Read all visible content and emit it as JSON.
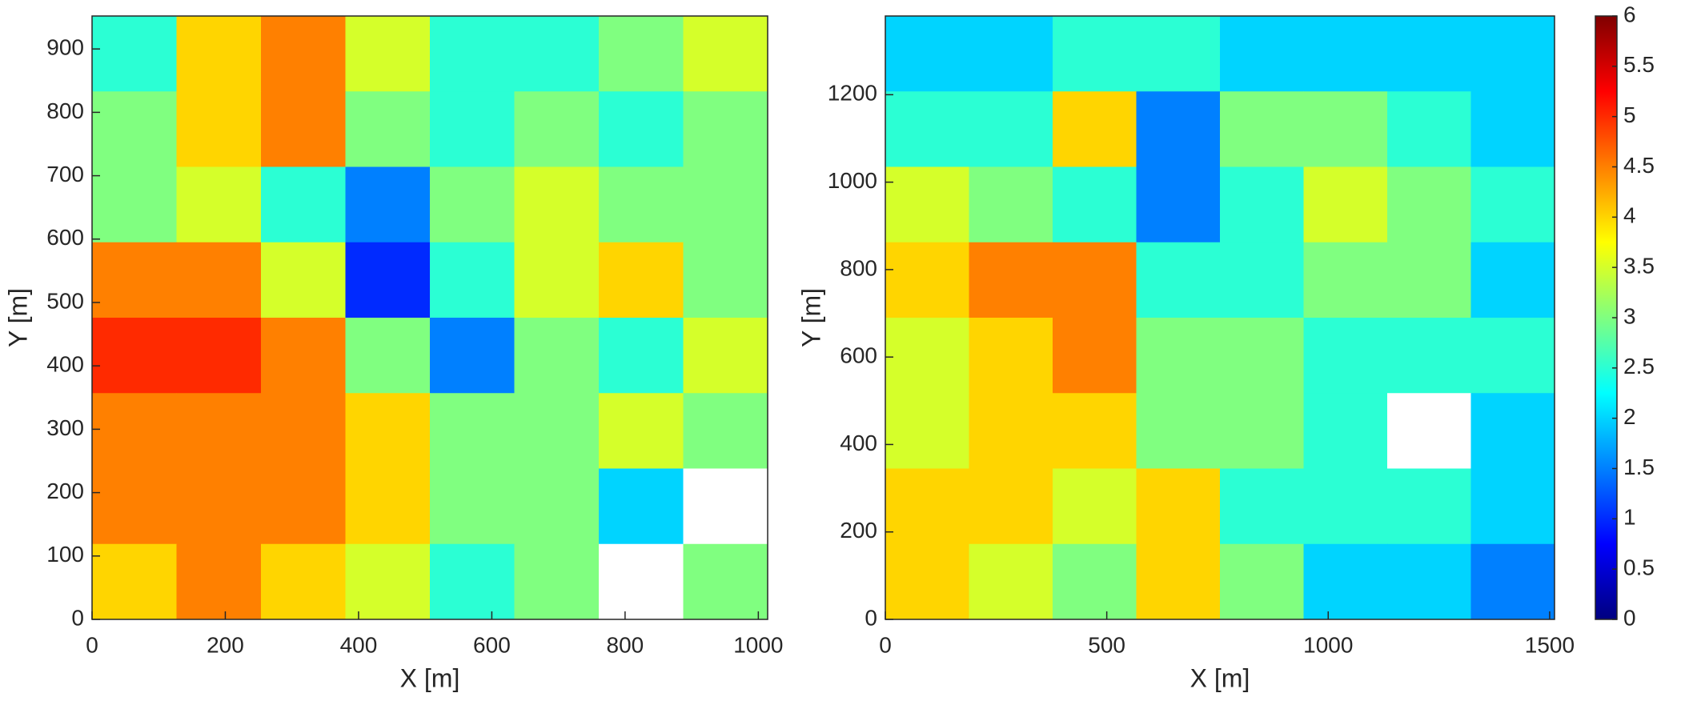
{
  "chart_data": [
    {
      "type": "heatmap",
      "xlabel": "X [m]",
      "ylabel": "Y [m]",
      "xlim": [
        0,
        1014
      ],
      "ylim": [
        0,
        952
      ],
      "xticks": [
        0,
        200,
        400,
        600,
        800,
        1000
      ],
      "yticks": [
        0,
        100,
        200,
        300,
        400,
        500,
        600,
        700,
        800,
        900
      ],
      "colormap": "jet",
      "clim": [
        0,
        6
      ],
      "values": [
        [
          2.5,
          4,
          4.5,
          3.5,
          2.5,
          2.5,
          3,
          3.5
        ],
        [
          3,
          4,
          4.5,
          3,
          2.5,
          3,
          2.5,
          3
        ],
        [
          3,
          3.5,
          2.5,
          1.5,
          3,
          3.5,
          3,
          3
        ],
        [
          4.5,
          4.5,
          3.5,
          1,
          2.5,
          3.5,
          4,
          3
        ],
        [
          5,
          5,
          4.5,
          3,
          1.5,
          3,
          2.5,
          3.5
        ],
        [
          4.5,
          4.5,
          4.5,
          4,
          3,
          3,
          3.5,
          3
        ],
        [
          4.5,
          4.5,
          4.5,
          4,
          3,
          3,
          2,
          null
        ],
        [
          4,
          4.5,
          4,
          3.5,
          2.5,
          3,
          null,
          3
        ]
      ]
    },
    {
      "type": "heatmap",
      "xlabel": "X [m]",
      "ylabel": "Y [m]",
      "xlim": [
        0,
        1511
      ],
      "ylim": [
        0,
        1380
      ],
      "xticks": [
        0,
        500,
        1000,
        1500
      ],
      "yticks": [
        0,
        200,
        400,
        600,
        800,
        1000,
        1200
      ],
      "colormap": "jet",
      "clim": [
        0,
        6
      ],
      "values": [
        [
          2,
          2,
          2.5,
          2.5,
          2,
          2,
          2,
          2
        ],
        [
          2.5,
          2.5,
          4,
          1.5,
          3,
          3,
          2.5,
          2
        ],
        [
          3.5,
          3,
          2.5,
          1.5,
          2.5,
          3.5,
          3,
          2.5
        ],
        [
          4,
          4.5,
          4.5,
          2.5,
          2.5,
          3,
          3,
          2
        ],
        [
          3.5,
          4,
          4.5,
          3,
          3,
          2.5,
          2.5,
          2.5
        ],
        [
          3.5,
          4,
          4,
          3,
          3,
          2.5,
          null,
          2
        ],
        [
          4,
          4,
          3.5,
          4,
          2.5,
          2.5,
          2.5,
          2
        ],
        [
          4,
          3.5,
          3,
          4,
          3,
          2,
          2,
          1.5
        ]
      ],
      "colorbar": {
        "clim": [
          0,
          6
        ],
        "ticks": [
          0,
          0.5,
          1,
          1.5,
          2,
          2.5,
          3,
          3.5,
          4,
          4.5,
          5,
          5.5,
          6
        ]
      }
    }
  ]
}
